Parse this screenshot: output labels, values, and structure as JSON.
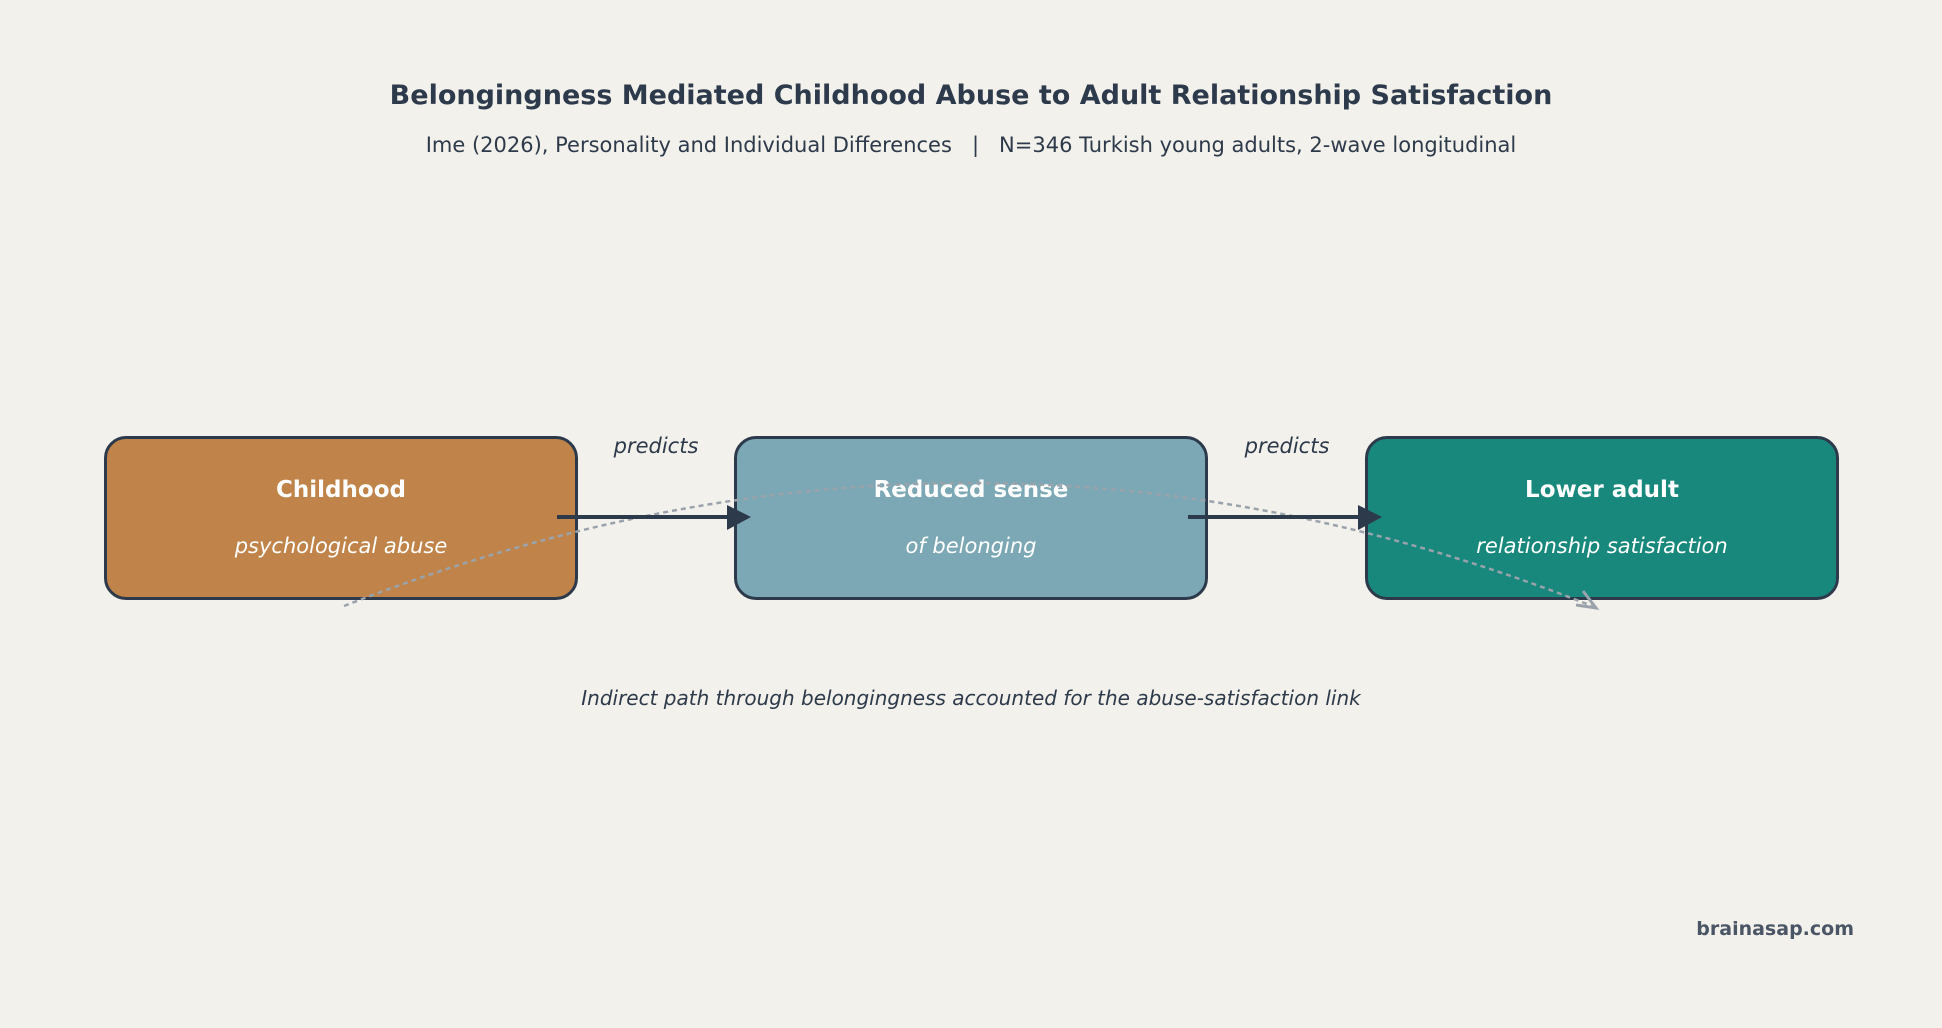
{
  "header": {
    "title": "Belongingness Mediated Childhood Abuse to Adult Relationship Satisfaction",
    "subtitle": "Ime (2026), Personality and Individual Differences   |   N=346 Turkish young adults, 2-wave longitudinal"
  },
  "nodes": [
    {
      "main": "Childhood",
      "sub": "psychological abuse",
      "color": "#c0844a"
    },
    {
      "main": "Reduced sense",
      "sub": "of belonging",
      "color": "#7ba8b4"
    },
    {
      "main": "Lower adult",
      "sub": "relationship satisfaction",
      "color": "#17887b"
    }
  ],
  "edges": [
    {
      "label": "predicts"
    },
    {
      "label": "predicts"
    }
  ],
  "caption": "Indirect path through belongingness accounted for the abuse-satisfaction link",
  "brand": "brainasap.com",
  "colors": {
    "arrow": "#2d3a4b",
    "indirect_path": "#9aa3ab",
    "background": "#f3f1eb"
  }
}
